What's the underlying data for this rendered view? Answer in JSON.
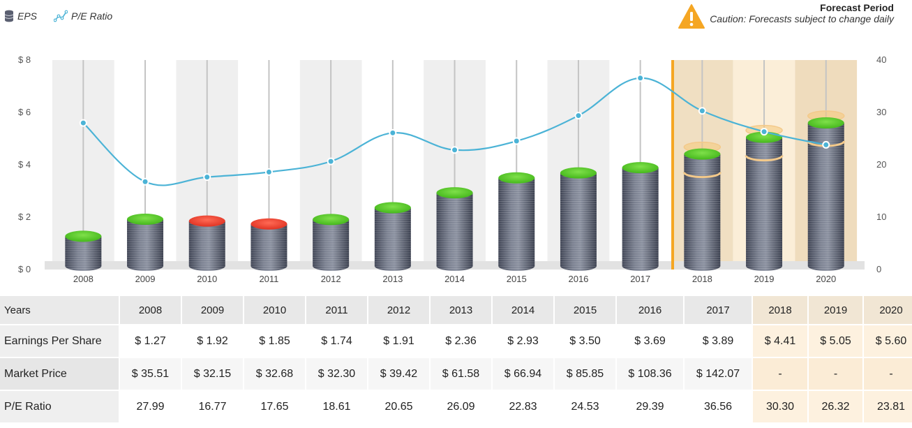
{
  "legend": {
    "eps_label": "EPS",
    "pe_label": "P/E Ratio"
  },
  "forecast": {
    "title": "Forecast Period",
    "caution": "Caution: Forecasts subject to change daily"
  },
  "colors": {
    "pe_line": "#4bb3d6",
    "eps_up": "#5fcc2e",
    "eps_down": "#f04a3a",
    "forecast_band": "#f3dfc0",
    "forecast_divider": "#f5a623",
    "warning": "#f5a623"
  },
  "chart_data": {
    "type": "bar",
    "categories": [
      "2008",
      "2009",
      "2010",
      "2011",
      "2012",
      "2013",
      "2014",
      "2015",
      "2016",
      "2017",
      "2018",
      "2019",
      "2020"
    ],
    "series": [
      {
        "name": "EPS",
        "axis": "left",
        "values": [
          1.27,
          1.92,
          1.85,
          1.74,
          1.91,
          2.36,
          2.93,
          3.5,
          3.69,
          3.89,
          4.41,
          5.05,
          5.6
        ]
      },
      {
        "name": "P/E Ratio",
        "axis": "right",
        "type": "line",
        "values": [
          27.99,
          16.77,
          17.65,
          18.61,
          20.65,
          26.09,
          22.83,
          24.53,
          29.39,
          36.56,
          30.3,
          26.32,
          23.81
        ]
      }
    ],
    "eps_trend": [
      "up",
      "up",
      "down",
      "down",
      "up",
      "up",
      "up",
      "up",
      "up",
      "up",
      "up",
      "up",
      "up"
    ],
    "forecast_categories": [
      "2018",
      "2019",
      "2020"
    ],
    "ylim_left": [
      0,
      8
    ],
    "yticks_left": [
      "$ 0",
      "$ 2",
      "$ 4",
      "$ 6",
      "$ 8"
    ],
    "ylim_right": [
      0,
      40
    ],
    "yticks_right": [
      "0",
      "10",
      "20",
      "30",
      "40"
    ]
  },
  "table": {
    "header_label": "Years",
    "years": [
      "2008",
      "2009",
      "2010",
      "2011",
      "2012",
      "2013",
      "2014",
      "2015",
      "2016",
      "2017",
      "2018",
      "2019",
      "2020"
    ],
    "forecast_flags": [
      false,
      false,
      false,
      false,
      false,
      false,
      false,
      false,
      false,
      false,
      true,
      true,
      true
    ],
    "rows": [
      {
        "label": "Earnings Per Share",
        "cells": [
          "$ 1.27",
          "$ 1.92",
          "$ 1.85",
          "$ 1.74",
          "$ 1.91",
          "$ 2.36",
          "$ 2.93",
          "$ 3.50",
          "$ 3.69",
          "$ 3.89",
          "$ 4.41",
          "$ 5.05",
          "$ 5.60"
        ]
      },
      {
        "label": "Market Price",
        "cells": [
          "$ 35.51",
          "$ 32.15",
          "$ 32.68",
          "$ 32.30",
          "$ 39.42",
          "$ 61.58",
          "$ 66.94",
          "$ 85.85",
          "$ 108.36",
          "$ 142.07",
          "-",
          "-",
          "-"
        ]
      },
      {
        "label": "P/E Ratio",
        "cells": [
          "27.99",
          "16.77",
          "17.65",
          "18.61",
          "20.65",
          "26.09",
          "22.83",
          "24.53",
          "29.39",
          "36.56",
          "30.30",
          "26.32",
          "23.81"
        ]
      }
    ]
  }
}
